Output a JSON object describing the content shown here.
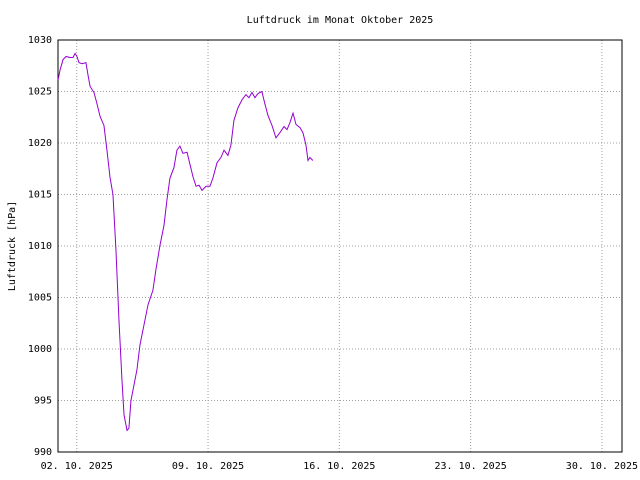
{
  "chart_data": {
    "type": "line",
    "title": "Luftdruck im Monat Oktober 2025",
    "ylabel": "Luftdruck [hPa]",
    "xlim": [
      1,
      31.07
    ],
    "xticks": [
      {
        "value": 2,
        "label": "02. 10. 2025"
      },
      {
        "value": 9,
        "label": "09. 10. 2025"
      },
      {
        "value": 16,
        "label": "16. 10. 2025"
      },
      {
        "value": 23,
        "label": "23. 10. 2025"
      },
      {
        "value": 30,
        "label": "30. 10. 2025"
      }
    ],
    "ylim": [
      990,
      1030
    ],
    "yticks": [
      990,
      995,
      1000,
      1005,
      1010,
      1015,
      1020,
      1025,
      1030
    ],
    "grid": true,
    "series": [
      {
        "color": "#9400d3",
        "x": [
          1.0,
          1.11,
          1.27,
          1.43,
          1.64,
          1.8,
          1.91,
          2.01,
          2.12,
          2.28,
          2.49,
          2.6,
          2.71,
          2.92,
          3.08,
          3.24,
          3.45,
          3.61,
          3.77,
          3.93,
          4.09,
          4.25,
          4.41,
          4.52,
          4.68,
          4.78,
          4.89,
          5.05,
          5.21,
          5.37,
          5.58,
          5.8,
          6.06,
          6.22,
          6.44,
          6.65,
          6.81,
          6.97,
          7.18,
          7.34,
          7.5,
          7.66,
          7.88,
          8.04,
          8.2,
          8.36,
          8.52,
          8.68,
          8.89,
          9.1,
          9.26,
          9.48,
          9.69,
          9.85,
          10.06,
          10.22,
          10.38,
          10.59,
          10.81,
          11.02,
          11.18,
          11.34,
          11.5,
          11.66,
          11.87,
          12.03,
          12.19,
          12.41,
          12.62,
          12.83,
          13.05,
          13.21,
          13.37,
          13.53,
          13.69,
          13.9,
          14.06,
          14.22,
          14.33,
          14.43,
          14.59
        ],
        "values": [
          1026.1,
          1027.1,
          1028.1,
          1028.4,
          1028.3,
          1028.3,
          1028.7,
          1028.4,
          1027.8,
          1027.7,
          1027.8,
          1026.6,
          1025.5,
          1024.9,
          1023.8,
          1022.6,
          1021.7,
          1019.3,
          1016.7,
          1015.0,
          1009.6,
          1002.8,
          997.0,
          993.6,
          992.1,
          992.3,
          995.0,
          996.5,
          998.0,
          1000.4,
          1002.3,
          1004.3,
          1005.7,
          1007.7,
          1010.1,
          1012.0,
          1014.5,
          1016.6,
          1017.6,
          1019.3,
          1019.7,
          1019.0,
          1019.1,
          1017.9,
          1016.7,
          1015.8,
          1015.9,
          1015.4,
          1015.8,
          1015.8,
          1016.6,
          1018.1,
          1018.6,
          1019.3,
          1018.8,
          1019.8,
          1022.2,
          1023.4,
          1024.2,
          1024.7,
          1024.4,
          1024.9,
          1024.4,
          1024.8,
          1025.0,
          1023.8,
          1022.7,
          1021.7,
          1020.5,
          1021.0,
          1021.6,
          1021.3,
          1022.0,
          1022.9,
          1021.8,
          1021.5,
          1021.0,
          1019.8,
          1018.3,
          1018.6,
          1018.3
        ]
      }
    ]
  }
}
